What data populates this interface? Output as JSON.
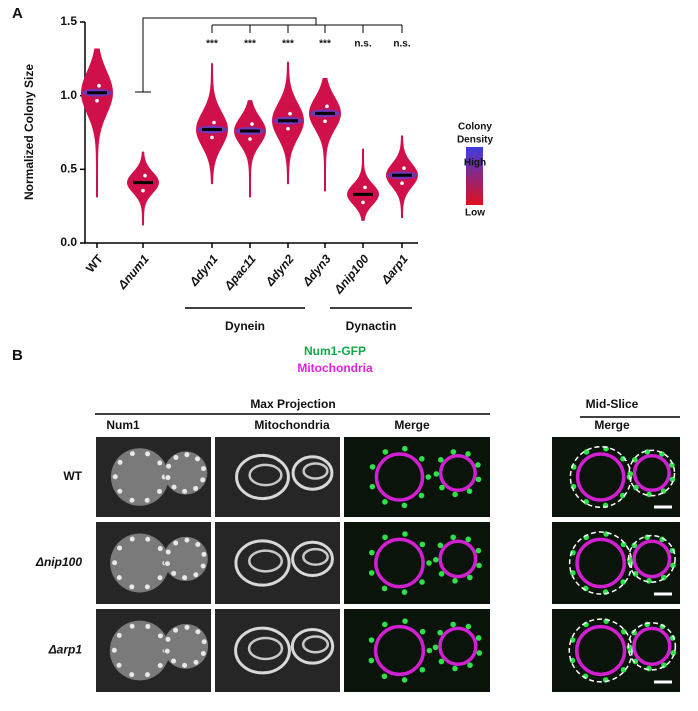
{
  "chart_data": {
    "type": "violin",
    "panel_label": "A",
    "y_label": "Normalized Colony Size",
    "categories": [
      "WT",
      "Δnum1",
      "Δdyn1",
      "Δpac11",
      "Δdyn2",
      "Δdyn3",
      "Δnip100",
      "Δarp1"
    ],
    "values": [
      1.02,
      0.41,
      0.77,
      0.76,
      0.83,
      0.88,
      0.33,
      0.46
    ],
    "mins": [
      0.31,
      0.12,
      0.4,
      0.31,
      0.4,
      0.35,
      0.15,
      0.17
    ],
    "maxs": [
      1.32,
      0.62,
      1.22,
      0.97,
      1.23,
      1.12,
      0.64,
      0.73
    ],
    "significance": [
      null,
      null,
      "***",
      "***",
      "***",
      "***",
      "n.s.",
      "n.s."
    ],
    "groups": [
      "Dynein",
      "Dynactin"
    ],
    "ylim": [
      0,
      1.5
    ],
    "yticks": [
      {
        "value": 0,
        "label": "0.0"
      },
      0.5,
      {
        "value": 1,
        "label": "1.0"
      },
      1.5
    ],
    "color": "#d0104a",
    "density_color": "#5a3fd0",
    "colorbar_title": [
      "Colony",
      "Density"
    ],
    "colorbar_labels": [
      "High",
      "Low"
    ],
    "colorbar_colors": [
      "#3d3de0",
      "#e0101c"
    ]
  },
  "panel_b": {
    "label": "B",
    "legend": [
      {
        "label": "Num1-GFP",
        "color": "#12a94a"
      },
      {
        "label": "Mitochondria",
        "color": "#e020e0"
      }
    ],
    "max_projection": "Max Projection",
    "mid_slice": "Mid-Slice",
    "columns": [
      "Num1",
      "Mitochondria",
      "Merge",
      "Merge"
    ],
    "rows": [
      "WT",
      "Δnip100",
      "Δarp1"
    ]
  }
}
